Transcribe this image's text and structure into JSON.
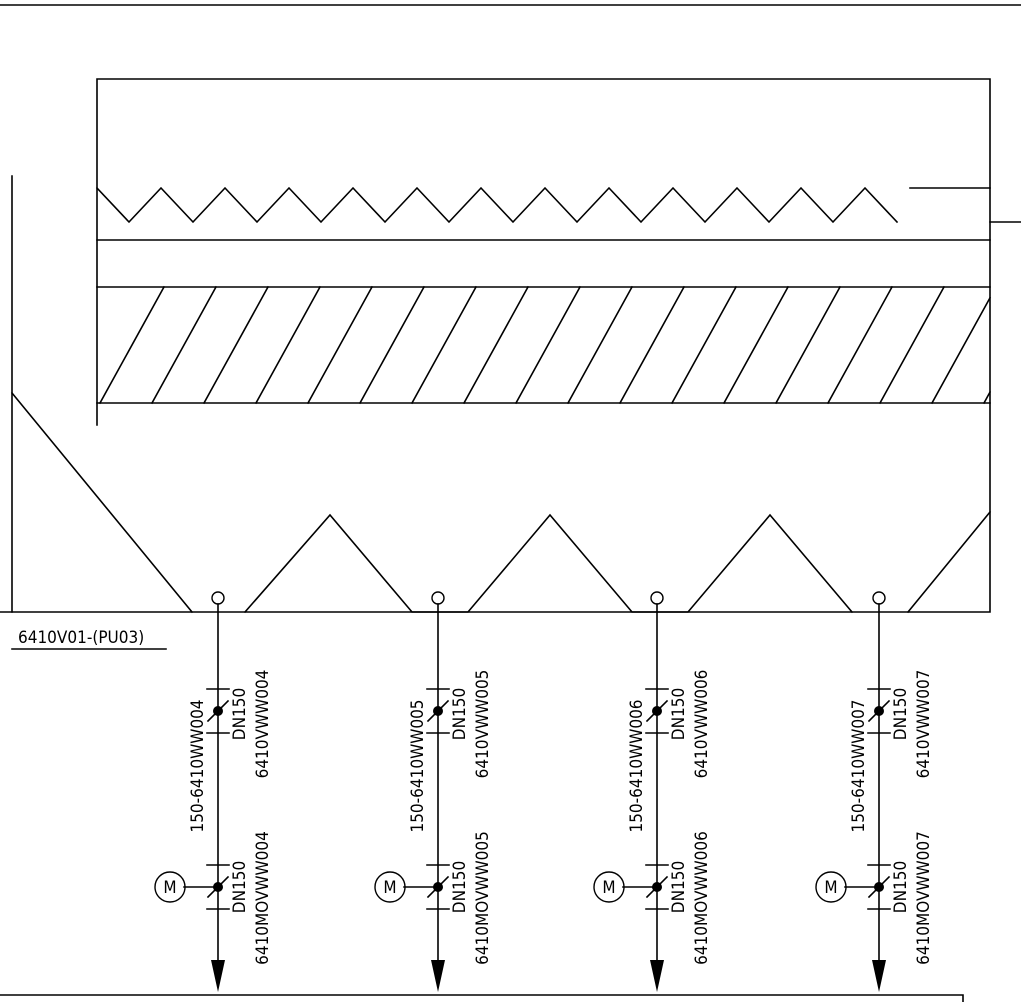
{
  "vessel_label": "6410V01-(PU03)",
  "branches": [
    {
      "line_no": "150-6410WW004",
      "manual_valve": {
        "size": "DN150",
        "tag": "6410VWW004"
      },
      "motor_valve": {
        "size": "DN150",
        "tag": "6410MOVWW004",
        "actuator": "M"
      }
    },
    {
      "line_no": "150-6410WW005",
      "manual_valve": {
        "size": "DN150",
        "tag": "6410VWW005"
      },
      "motor_valve": {
        "size": "DN150",
        "tag": "6410MOVWW005",
        "actuator": "M"
      }
    },
    {
      "line_no": "150-6410WW006",
      "manual_valve": {
        "size": "DN150",
        "tag": "6410VWW006"
      },
      "motor_valve": {
        "size": "DN150",
        "tag": "6410MOVWW006",
        "actuator": "M"
      }
    },
    {
      "line_no": "150-6410WW007",
      "manual_valve": {
        "size": "DN150",
        "tag": "6410VWW007"
      },
      "motor_valve": {
        "size": "DN150",
        "tag": "6410MOVWW007",
        "actuator": "M"
      }
    }
  ]
}
